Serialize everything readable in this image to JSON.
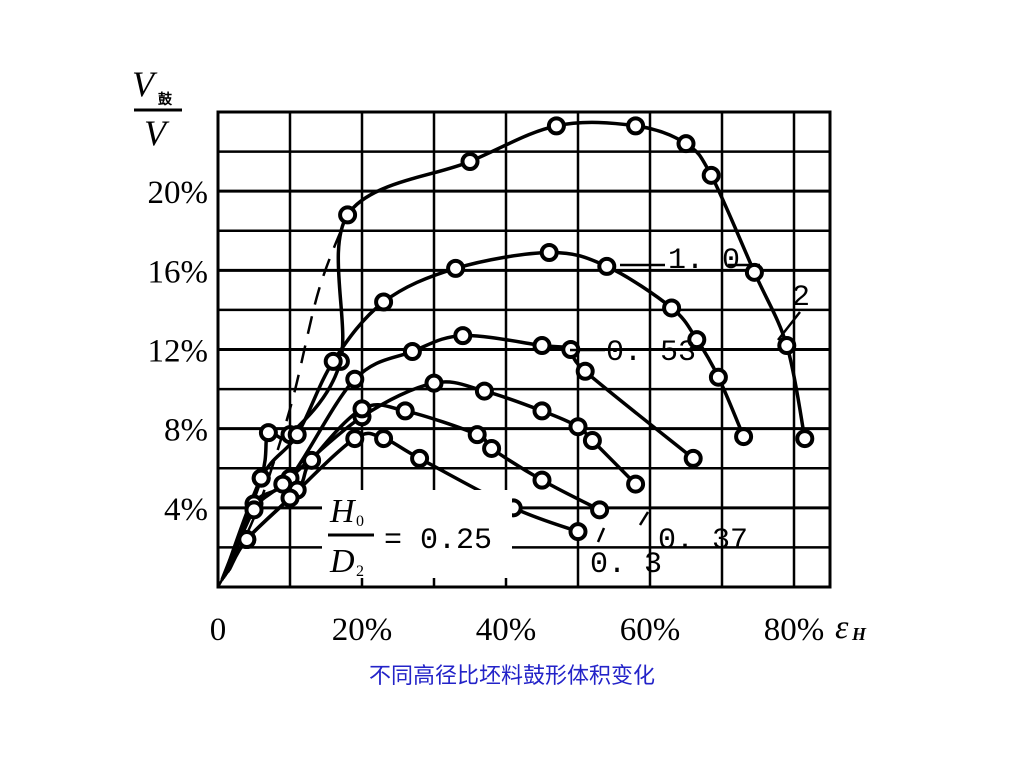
{
  "caption": "不同高径比坯料鼓形体积变化",
  "colors": {
    "ink": "#000000",
    "caption": "#2323c8",
    "background": "#ffffff"
  },
  "chart_data": {
    "type": "line",
    "grid": true,
    "xlabel": "ε_H",
    "ylabel": "V鼓/V",
    "xlim": [
      0,
      85
    ],
    "ylim": [
      0,
      24
    ],
    "x_ticks": [
      "0",
      "20%",
      "40%",
      "60%",
      "80%"
    ],
    "y_ticks": [
      "4%",
      "8%",
      "12%",
      "16%",
      "20%"
    ],
    "legend_label": {
      "param": "H₀/D₂",
      "equals": "= 0.25"
    },
    "series": [
      {
        "name": "2",
        "points": [
          [
            6,
            5.5
          ],
          [
            7,
            7.8
          ],
          [
            10,
            7.7
          ],
          [
            17,
            11.4
          ],
          [
            18,
            18.8
          ],
          [
            35,
            21.5
          ],
          [
            47,
            23.3
          ],
          [
            58,
            23.3
          ],
          [
            65,
            22.4
          ],
          [
            68.5,
            20.8
          ],
          [
            74.5,
            15.9
          ],
          [
            79,
            12.2
          ],
          [
            81.5,
            7.5
          ]
        ],
        "dashed_extension": [
          [
            0,
            0
          ],
          [
            5,
            3.5
          ],
          [
            10,
            9
          ],
          [
            14,
            15
          ],
          [
            18,
            18.8
          ]
        ]
      },
      {
        "name": "1.0",
        "points": [
          [
            6,
            5.5
          ],
          [
            11,
            7.7
          ],
          [
            16,
            11.4
          ],
          [
            23,
            14.4
          ],
          [
            33,
            16.1
          ],
          [
            46,
            16.9
          ],
          [
            54,
            16.2
          ],
          [
            63,
            14.1
          ],
          [
            66.5,
            12.5
          ],
          [
            69.5,
            10.6
          ],
          [
            73,
            7.6
          ]
        ],
        "dashed_extension": []
      },
      {
        "name": "0.53",
        "points": [
          [
            5,
            4.2
          ],
          [
            10,
            5.5
          ],
          [
            19,
            10.5
          ],
          [
            27,
            11.9
          ],
          [
            34,
            12.7
          ],
          [
            45,
            12.2
          ],
          [
            49,
            12.0
          ],
          [
            51,
            10.9
          ],
          [
            66,
            6.5
          ]
        ],
        "dashed_extension": []
      },
      {
        "name": "0.37",
        "points": [
          [
            5,
            3.9
          ],
          [
            9,
            5.2
          ],
          [
            20,
            8.6
          ],
          [
            30,
            10.3
          ],
          [
            37,
            9.9
          ],
          [
            45,
            8.9
          ],
          [
            50,
            8.1
          ],
          [
            52,
            7.4
          ],
          [
            58,
            5.2
          ]
        ],
        "dashed_extension": []
      },
      {
        "name": "0.3",
        "points": [
          [
            4,
            2.4
          ],
          [
            11,
            4.9
          ],
          [
            13,
            6.4
          ],
          [
            20,
            9.0
          ],
          [
            26,
            8.9
          ],
          [
            36,
            7.7
          ],
          [
            38,
            7.0
          ],
          [
            45,
            5.4
          ],
          [
            53,
            3.9
          ]
        ],
        "dashed_extension": []
      },
      {
        "name": "0.25",
        "points": [
          [
            4,
            2.4
          ],
          [
            10,
            4.5
          ],
          [
            19,
            7.5
          ],
          [
            23,
            7.5
          ],
          [
            28,
            6.5
          ],
          [
            41,
            4.0
          ],
          [
            50,
            2.8
          ]
        ],
        "dashed_extension": []
      }
    ]
  }
}
